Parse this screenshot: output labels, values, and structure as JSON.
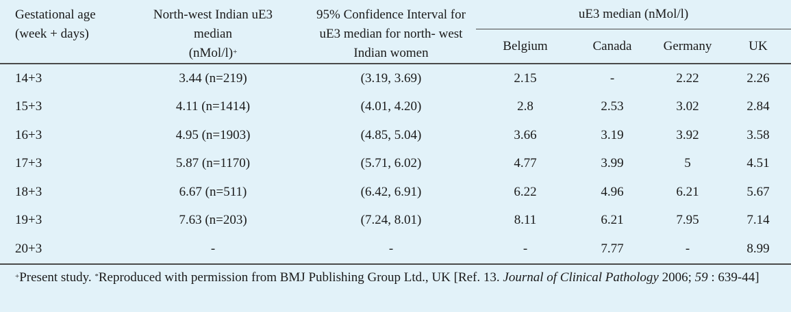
{
  "headers": {
    "gest_age": [
      "Gestational age",
      "(week + days)"
    ],
    "nw_median": [
      "North-west Indian uE3",
      "median",
      "(nMol/l)"
    ],
    "nw_median_mark": "+",
    "ci": [
      "95% Confidence Interval for",
      "uE3 median for north- west",
      "Indian women"
    ],
    "group": "uE3 median (nMol/l)",
    "countries": [
      "Belgium",
      "Canada",
      "Germany",
      "UK"
    ]
  },
  "rows": [
    {
      "age": "14+3",
      "median": "3.44 (n=219)",
      "ci": "(3.19, 3.69)",
      "belgium": "2.15",
      "canada": "-",
      "germany": "2.22",
      "uk": "2.26"
    },
    {
      "age": "15+3",
      "median": "4.11 (n=1414)",
      "ci": "(4.01, 4.20)",
      "belgium": "2.8",
      "canada": "2.53",
      "germany": "3.02",
      "uk": "2.84"
    },
    {
      "age": "16+3",
      "median": "4.95 (n=1903)",
      "ci": "(4.85, 5.04)",
      "belgium": "3.66",
      "canada": "3.19",
      "germany": "3.92",
      "uk": "3.58"
    },
    {
      "age": "17+3",
      "median": "5.87 (n=1170)",
      "ci": "(5.71, 6.02)",
      "belgium": "4.77",
      "canada": "3.99",
      "germany": "5",
      "uk": "4.51"
    },
    {
      "age": "18+3",
      "median": "6.67 (n=511)",
      "ci": "(6.42, 6.91)",
      "belgium": "6.22",
      "canada": "4.96",
      "germany": "6.21",
      "uk": "5.67"
    },
    {
      "age": "19+3",
      "median": "7.63 (n=203)",
      "ci": "(7.24, 8.01)",
      "belgium": "8.11",
      "canada": "6.21",
      "germany": "7.95",
      "uk": "7.14"
    },
    {
      "age": "20+3",
      "median": "-",
      "ci": "-",
      "belgium": "-",
      "canada": "7.77",
      "germany": "-",
      "uk": "8.99"
    }
  ],
  "footnote": {
    "mark1": "+",
    "text1": "Present study. ",
    "mark2": "*",
    "text2": "Reproduced with permission from BMJ Publishing Group Ltd., UK [Ref. 13. ",
    "journal": "Journal of Clinical Pathology",
    "year": " 2006; ",
    "volume": "59",
    "pages": " : 639-44]"
  }
}
